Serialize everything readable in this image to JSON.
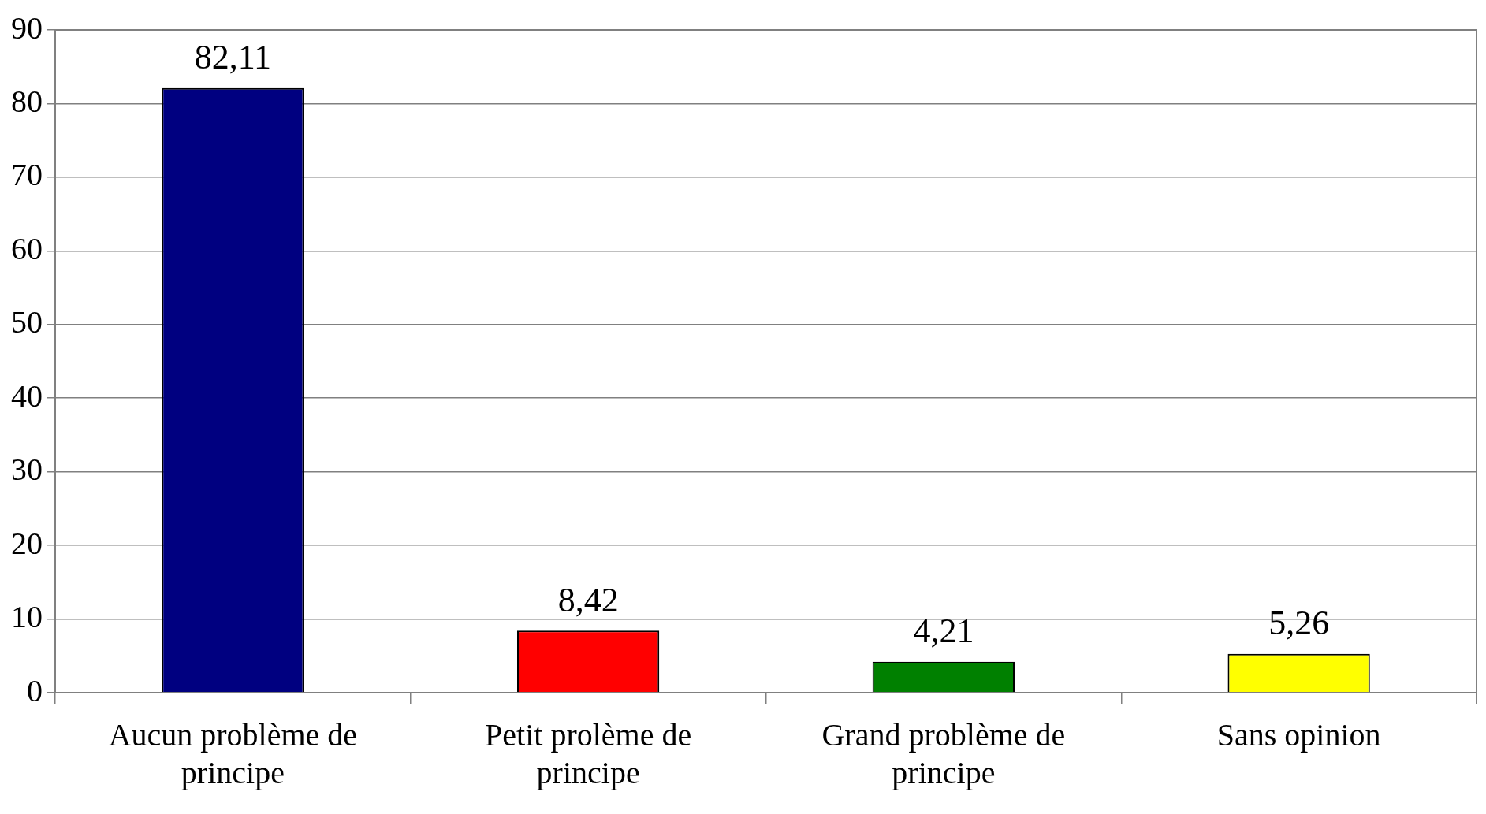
{
  "chart_data": {
    "type": "bar",
    "categories": [
      "Aucun problème de principe",
      "Petit prolème de principe",
      "Grand problème de principe",
      "Sans opinion"
    ],
    "values": [
      82.11,
      8.42,
      4.21,
      5.26
    ],
    "colors": [
      "#000080",
      "#ff0000",
      "#008000",
      "#ffff00"
    ],
    "ylim": [
      0,
      90
    ],
    "yticks": [
      0,
      10,
      20,
      30,
      40,
      50,
      60,
      70,
      80,
      90
    ],
    "value_labels": [
      "82,11",
      "8,42",
      "4,21",
      "5,26"
    ],
    "grid": "y",
    "legend": false
  }
}
